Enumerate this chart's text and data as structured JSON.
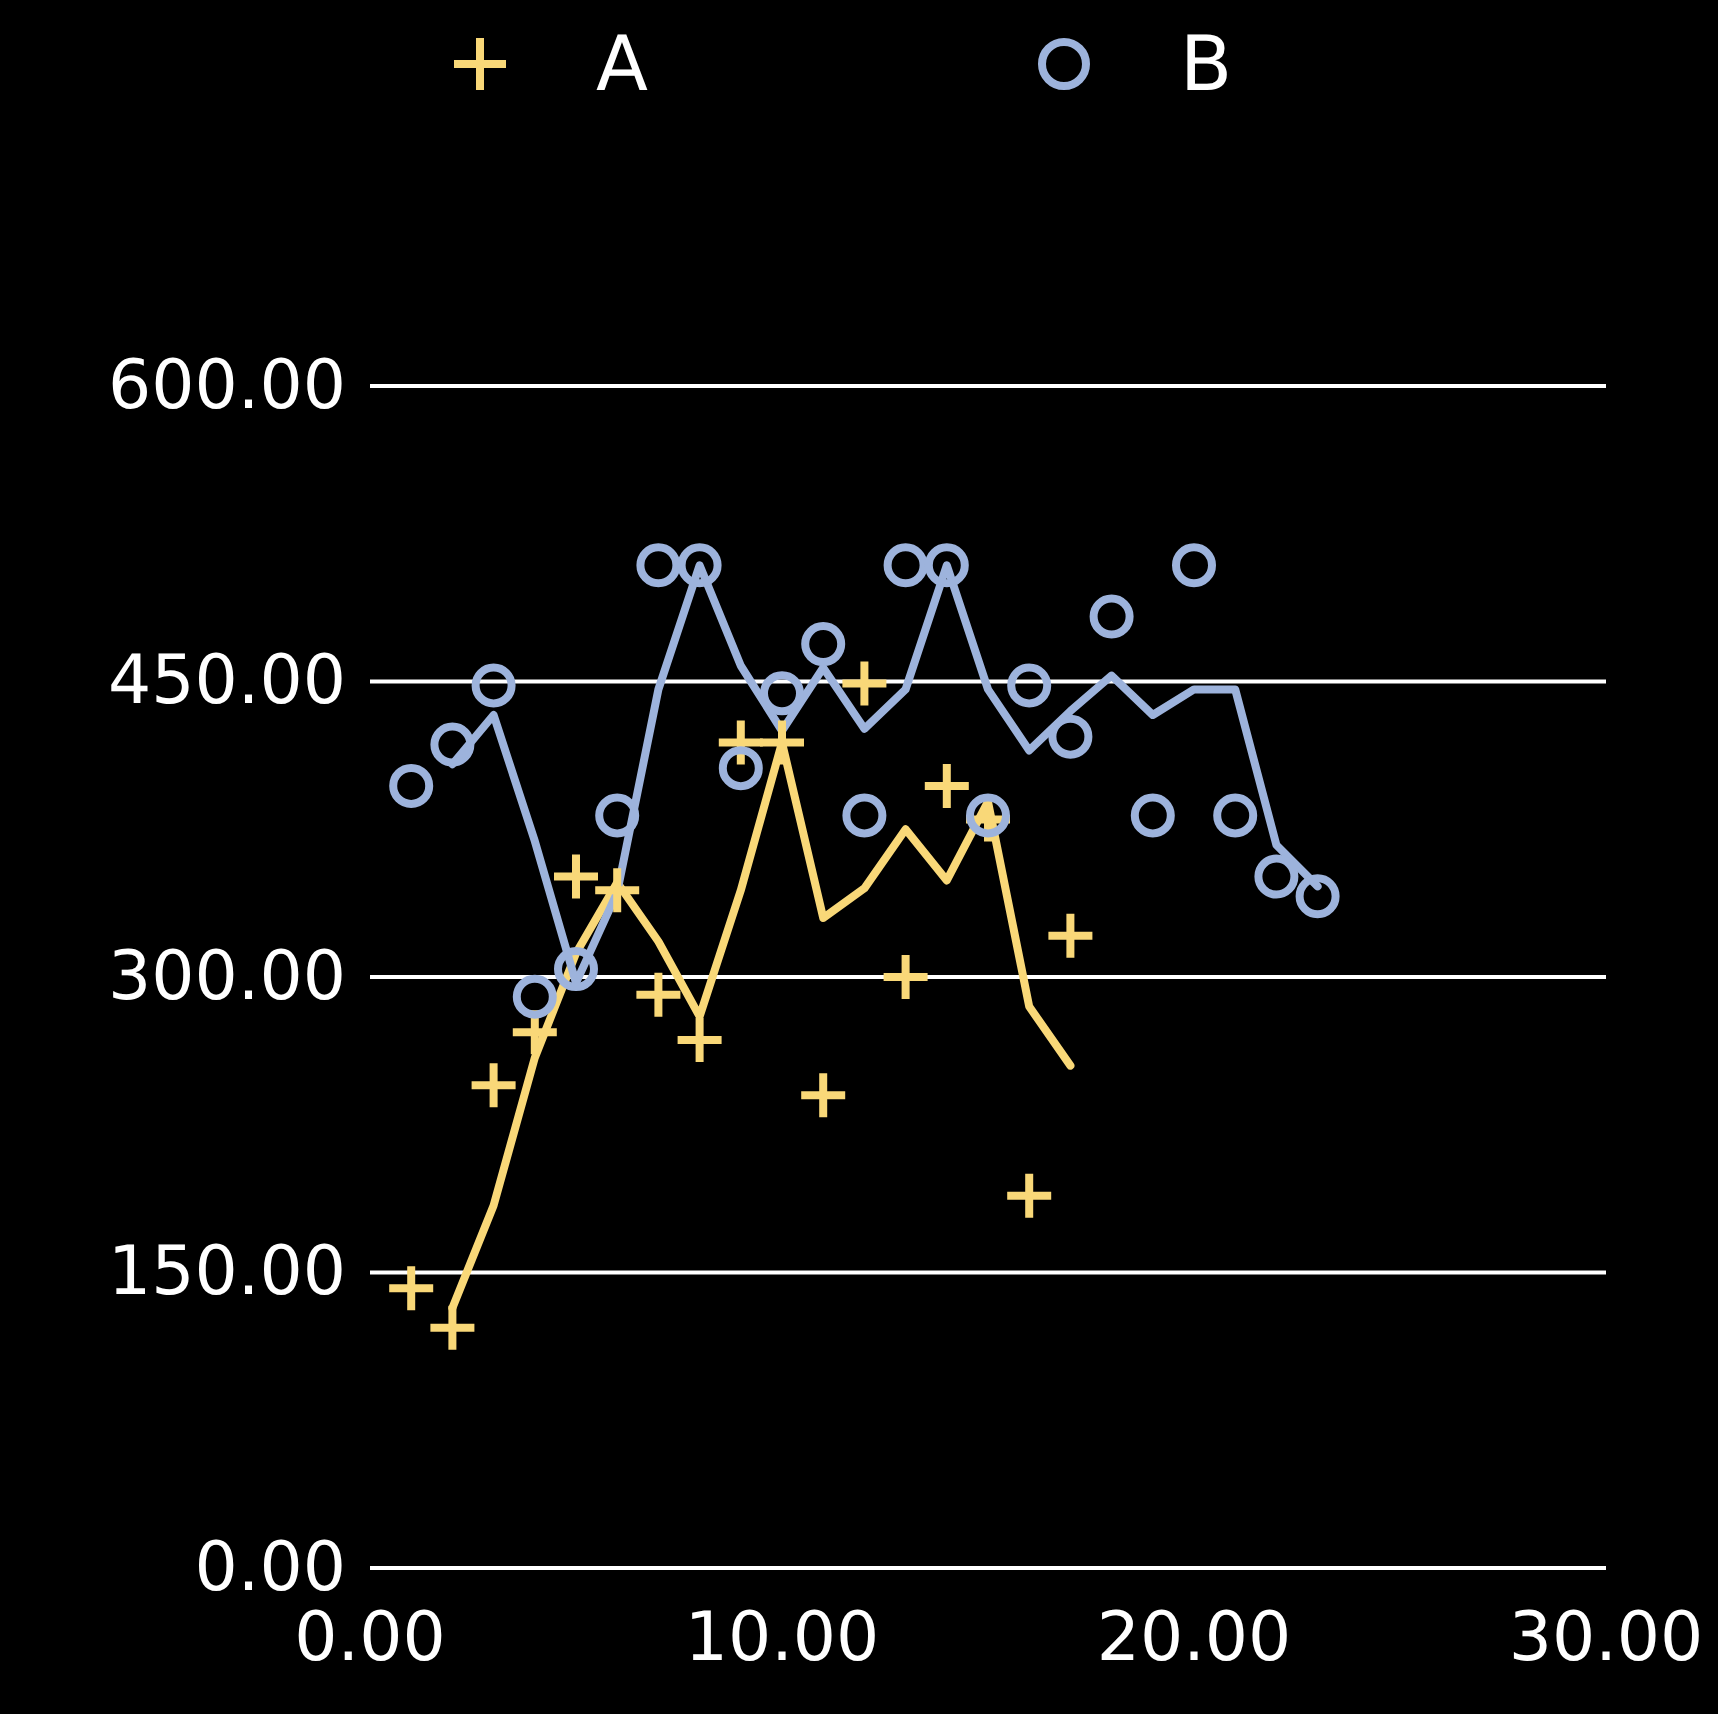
{
  "chart_data": {
    "type": "scatter",
    "xlim": [
      0,
      30
    ],
    "ylim": [
      0,
      600
    ],
    "xticks": [
      {
        "value": 0,
        "label": "0.00"
      },
      {
        "value": 10,
        "label": "10.00"
      },
      {
        "value": 20,
        "label": "20.00"
      },
      {
        "value": 30,
        "label": "30.00"
      }
    ],
    "yticks": [
      {
        "value": 0,
        "label": "0.00"
      },
      {
        "value": 150,
        "label": "150.00"
      },
      {
        "value": 300,
        "label": "300.00"
      },
      {
        "value": 450,
        "label": "450.00"
      },
      {
        "value": 600,
        "label": "600.00"
      }
    ],
    "grid": "y",
    "legend": "top",
    "series": [
      {
        "name": "A",
        "marker": "cross",
        "color": "#f9d878",
        "x": [
          1,
          2,
          3,
          4,
          5,
          6,
          7,
          8,
          9,
          10,
          11,
          12,
          13,
          14,
          15,
          16,
          17
        ],
        "values": [
          142,
          122,
          245,
          272,
          351,
          344,
          291,
          268,
          419,
          419,
          240,
          449,
          300,
          397,
          380,
          189,
          321
        ]
      },
      {
        "name": "B",
        "marker": "circle",
        "color": "#9db3dc",
        "x": [
          1,
          2,
          3,
          4,
          5,
          6,
          7,
          8,
          9,
          10,
          11,
          12,
          13,
          14,
          15,
          16,
          17,
          18,
          19,
          20,
          21,
          22,
          23
        ],
        "values": [
          397,
          418,
          448,
          290,
          304,
          382,
          509,
          509,
          406,
          444,
          469,
          382,
          509,
          509,
          382,
          448,
          422,
          483,
          382,
          509,
          382,
          351,
          341
        ]
      },
      {
        "type": "line",
        "marker": "none",
        "color": "#f9d878",
        "x": [
          2,
          3,
          4,
          5,
          6,
          7,
          8,
          9,
          10,
          11,
          12,
          13,
          14,
          15,
          16,
          17
        ],
        "values": [
          132,
          184,
          259,
          312,
          348,
          318,
          280,
          344,
          419,
          330,
          345,
          375,
          349,
          389,
          285,
          255
        ]
      },
      {
        "type": "line",
        "marker": "none",
        "color": "#9db3dc",
        "x": [
          2,
          3,
          4,
          5,
          6,
          7,
          8,
          9,
          10,
          11,
          12,
          13,
          14,
          15,
          16,
          17,
          18,
          19,
          20,
          21,
          22,
          23
        ],
        "values": [
          408,
          433,
          369,
          297,
          343,
          446,
          509,
          458,
          425,
          457,
          426,
          446,
          509,
          446,
          415,
          435,
          453,
          433,
          446,
          446,
          367,
          346
        ]
      }
    ]
  }
}
